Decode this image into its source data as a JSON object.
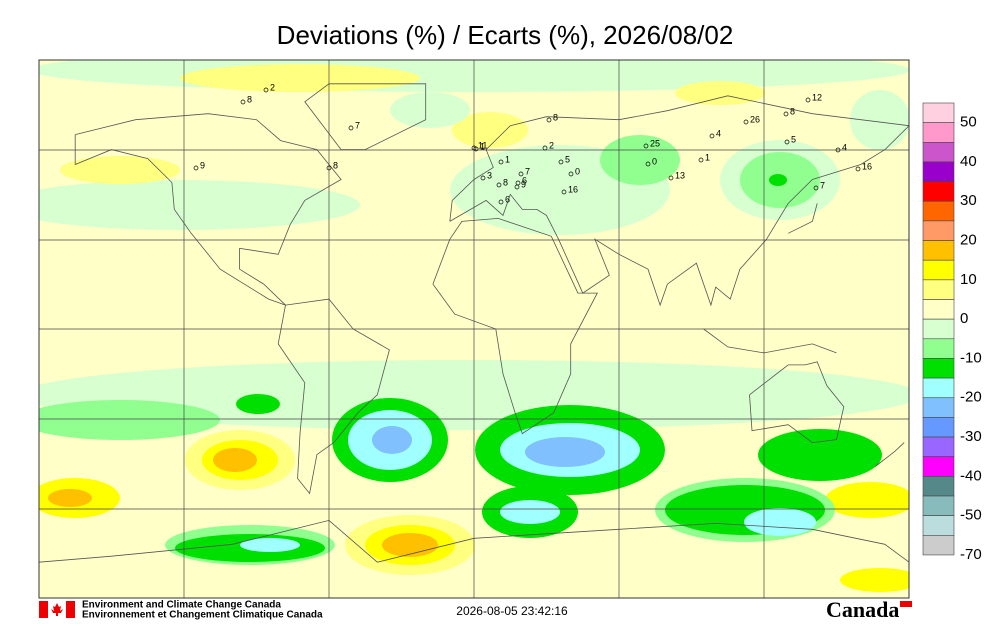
{
  "title": "Deviations (%) / Ecarts (%), 2026/08/02",
  "legend": {
    "colors": [
      "#ffd0e0",
      "#ff99cc",
      "#cc55cc",
      "#9900cc",
      "#ff0000",
      "#ff6600",
      "#ff9966",
      "#ffc000",
      "#ffff00",
      "#ffff80",
      "#ffffc8",
      "#d8ffd0",
      "#90ff90",
      "#00e000",
      "#a0ffff",
      "#80c0ff",
      "#6699ff",
      "#9966ff",
      "#ff00ff",
      "#558888",
      "#88bbbb",
      "#bbdddd",
      "#cccccc"
    ],
    "labels": [
      "50",
      "40",
      "30",
      "20",
      "10",
      "0",
      "-10",
      "-20",
      "-30",
      "-40",
      "-50",
      "-70"
    ]
  },
  "station_labels": [
    "2",
    "8",
    "7",
    "9",
    "8",
    "1",
    "11",
    "1",
    "3",
    "8",
    "6",
    "2",
    "7",
    "9",
    "0",
    "16",
    "6",
    "5",
    "8",
    "25",
    "1",
    "0",
    "13",
    "4",
    "26",
    "8",
    "12",
    "5",
    "4",
    "16",
    "7"
  ],
  "footer": {
    "agency_en": "Environment and Climate Change Canada",
    "agency_fr": "Environnement et Changement Climatique Canada",
    "timestamp": "2026-08-05 23:42:16",
    "wordmark": "Canada"
  }
}
